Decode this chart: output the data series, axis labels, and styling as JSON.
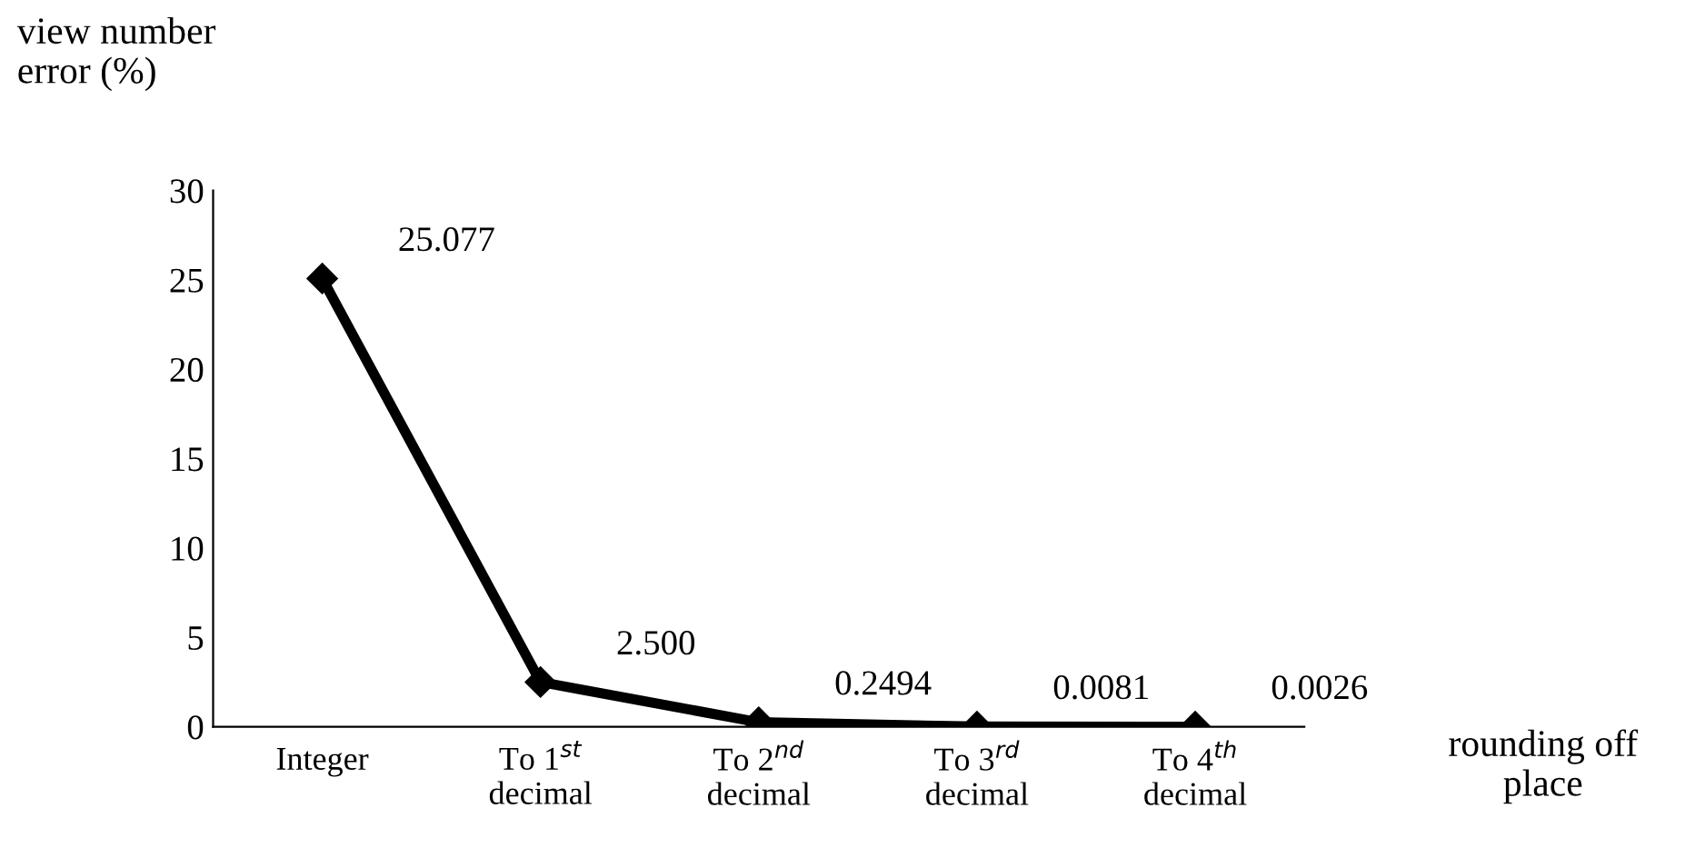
{
  "chart_data": {
    "type": "line",
    "ylabel": "view number\nerror (%)",
    "xlabel": "rounding off\nplace",
    "categories": [
      "Integer",
      "To 1$^{st}$\ndecimal",
      "To 2$^{nd}$\ndecimal",
      "To 3$^{rd}$\ndecimal",
      "To 4$^{th}$\ndecimal"
    ],
    "series": [
      {
        "color": "#000000",
        "values": [
          25.077,
          2.5,
          0.2494,
          0.0081,
          0.0026
        ],
        "value_labels": [
          "25.077",
          "2.500",
          "0.2494",
          "0.0081",
          "0.0026"
        ]
      }
    ],
    "ylim": [
      0,
      30
    ],
    "yticks": [
      0,
      5,
      10,
      15,
      20,
      25,
      30
    ],
    "marker": "diamond",
    "line_style": "solid",
    "grid": false,
    "legend": false
  }
}
